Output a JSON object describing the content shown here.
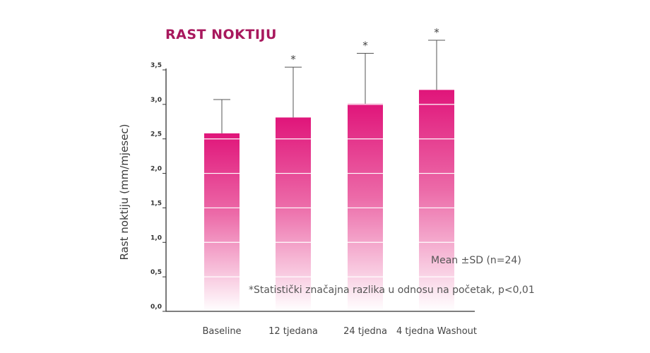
{
  "chart_data": {
    "type": "bar",
    "title": "RAST NOKTIJU",
    "ylabel": "Rast noktiju (mm/mjesec)",
    "xlabel": "",
    "categories": [
      "Baseline",
      "12 tjedana",
      "24 tjedna",
      "4 tjedna Washout"
    ],
    "values": [
      2.58,
      2.81,
      3.01,
      3.21
    ],
    "error_sd": [
      0.49,
      0.73,
      0.73,
      0.72
    ],
    "significance_markers": [
      "",
      "*",
      "*",
      "*"
    ],
    "ylim": [
      0,
      3.5
    ],
    "yticks": [
      "0,0",
      "0,5",
      "1,0",
      "1,5",
      "2,0",
      "2,5",
      "3,0",
      "3,5"
    ],
    "grid": false,
    "annotations": {
      "stats": "Mean ±SD (n=24)",
      "significance": "*Statistički značajna razlika u odnosu na početak, p<0,01"
    },
    "colors": {
      "bar_top": "#e0157a",
      "bar_bottom": "#ffffff",
      "title": "#a8185d",
      "axis": "#333333",
      "error_bar": "#555555"
    }
  }
}
